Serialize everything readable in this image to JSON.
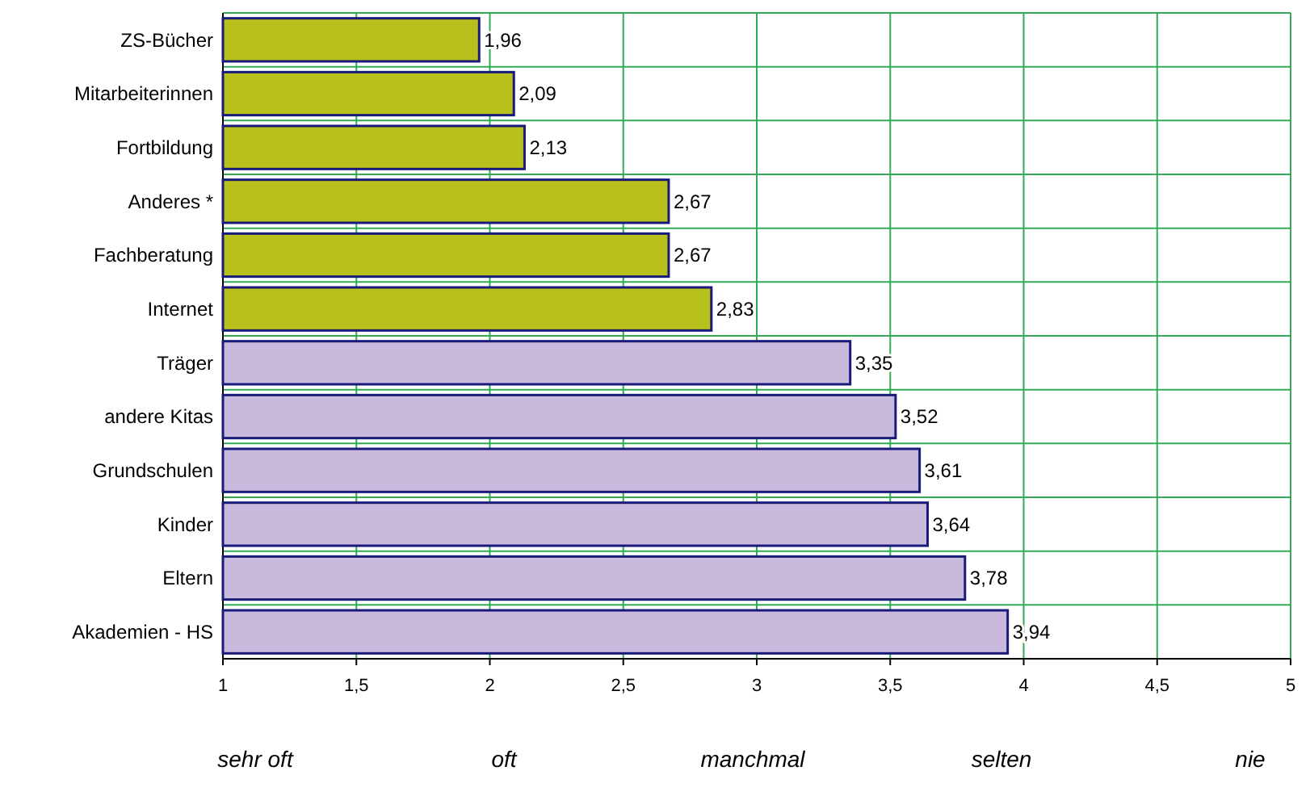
{
  "chart_data": {
    "type": "bar",
    "orientation": "horizontal",
    "categories": [
      "ZS-Bücher",
      "Mitarbeiterinnen",
      "Fortbildung",
      "Anderes *",
      "Fachberatung",
      "Internet",
      "Träger",
      "andere Kitas",
      "Grundschulen",
      "Kinder",
      "Eltern",
      "Akademien - HS"
    ],
    "values": [
      1.96,
      2.09,
      2.13,
      2.67,
      2.67,
      2.83,
      3.35,
      3.52,
      3.61,
      3.64,
      3.78,
      3.94
    ],
    "value_labels": [
      "1,96",
      "2,09",
      "2,13",
      "2,67",
      "2,67",
      "2,83",
      "3,35",
      "3,52",
      "3,61",
      "3,64",
      "3,78",
      "3,94"
    ],
    "colors": [
      "#b8c11c",
      "#b8c11c",
      "#b8c11c",
      "#b8c11c",
      "#b8c11c",
      "#b8c11c",
      "#c9b9dc",
      "#c9b9dc",
      "#c9b9dc",
      "#c9b9dc",
      "#c9b9dc",
      "#c9b9dc"
    ],
    "xlim": [
      1,
      5
    ],
    "xticks": [
      1,
      {
        "value": 1.5,
        "label": "1,5"
      },
      2,
      {
        "value": 2.5,
        "label": "2,5"
      },
      3,
      {
        "value": 3.5,
        "label": "3,5"
      },
      4,
      {
        "value": 4.5,
        "label": "4,5"
      },
      5
    ],
    "grid": true,
    "annotations": [
      "sehr oft",
      "oft",
      "manchmal",
      "selten",
      "nie"
    ]
  }
}
